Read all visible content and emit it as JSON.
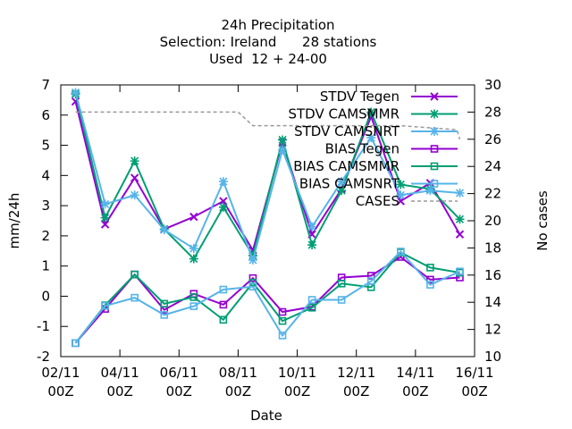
{
  "chart_data": {
    "type": "line",
    "title_lines": [
      "24h Precipitation",
      "Selection: Ireland      28 stations",
      "Used  12 + 24-00"
    ],
    "xlabel": "Date",
    "ylabel": "mm/24h",
    "y2label": "No cases",
    "xlim": [
      0,
      14
    ],
    "ylim": [
      -2,
      7
    ],
    "y2lim": [
      10,
      30
    ],
    "x_ticks": [
      {
        "x": 0,
        "line1": "02/11",
        "line2": "00Z"
      },
      {
        "x": 2,
        "line1": "04/11",
        "line2": "00Z"
      },
      {
        "x": 4,
        "line1": "06/11",
        "line2": "00Z"
      },
      {
        "x": 6,
        "line1": "08/11",
        "line2": "00Z"
      },
      {
        "x": 8,
        "line1": "10/11",
        "line2": "00Z"
      },
      {
        "x": 10,
        "line1": "12/11",
        "line2": "00Z"
      },
      {
        "x": 12,
        "line1": "14/11",
        "line2": "00Z"
      },
      {
        "x": 14,
        "line1": "16/11",
        "line2": "00Z"
      }
    ],
    "y_ticks": [
      "-2",
      "-1",
      "0",
      "1",
      "2",
      "3",
      "4",
      "5",
      "6",
      "7"
    ],
    "y2_ticks": [
      "10",
      "12",
      "14",
      "16",
      "18",
      "20",
      "22",
      "24",
      "26",
      "28",
      "30"
    ],
    "legend_position": "top-right",
    "series": [
      {
        "name": "STDV Tegen",
        "color": "#9400d3",
        "marker": "x",
        "axis": "y",
        "x": [
          0.5,
          1.5,
          2.5,
          3.5,
          4.5,
          5.5,
          6.5,
          7.5,
          8.5,
          9.5,
          10.5,
          11.5,
          12.5,
          13.5
        ],
        "y": [
          6.45,
          2.38,
          3.92,
          2.22,
          2.63,
          3.15,
          1.52,
          5.1,
          2.05,
          3.55,
          5.95,
          3.15,
          3.75,
          2.05
        ]
      },
      {
        "name": "STDV CAMSMMR",
        "color": "#009e73",
        "marker": "*",
        "axis": "y",
        "x": [
          0.5,
          1.5,
          2.5,
          3.5,
          4.5,
          5.5,
          6.5,
          7.5,
          8.5,
          9.5,
          10.5,
          11.5,
          12.5,
          13.5
        ],
        "y": [
          6.7,
          2.6,
          4.48,
          2.22,
          1.24,
          2.95,
          1.35,
          5.18,
          1.7,
          3.5,
          6.1,
          3.7,
          3.55,
          2.55
        ]
      },
      {
        "name": "STDV CAMSNRT",
        "color": "#56b4e9",
        "marker": "*",
        "axis": "y",
        "x": [
          0.5,
          1.5,
          2.5,
          3.5,
          4.5,
          5.5,
          6.5,
          7.5,
          8.5,
          9.5,
          10.5,
          11.5,
          12.5,
          13.5
        ],
        "y": [
          6.75,
          3.05,
          3.35,
          2.2,
          1.58,
          3.8,
          1.2,
          4.85,
          2.3,
          3.8,
          5.25,
          3.35,
          3.5,
          3.42
        ]
      },
      {
        "name": "BIAS Tegen",
        "color": "#9400d3",
        "marker": "square",
        "axis": "y",
        "x": [
          0.5,
          1.5,
          2.5,
          3.5,
          4.5,
          5.5,
          6.5,
          7.5,
          8.5,
          9.5,
          10.5,
          11.5,
          12.5,
          13.5
        ],
        "y": [
          -1.55,
          -0.42,
          0.72,
          -0.45,
          0.08,
          -0.28,
          0.6,
          -0.52,
          -0.35,
          0.62,
          0.68,
          1.3,
          0.55,
          0.62
        ]
      },
      {
        "name": "BIAS CAMSMMR",
        "color": "#009e73",
        "marker": "square",
        "axis": "y",
        "x": [
          0.5,
          1.5,
          2.5,
          3.5,
          4.5,
          5.5,
          6.5,
          7.5,
          8.5,
          9.5,
          10.5,
          11.5,
          12.5,
          13.5
        ],
        "y": [
          -1.55,
          -0.3,
          0.72,
          -0.25,
          -0.03,
          -0.78,
          0.45,
          -0.82,
          -0.38,
          0.42,
          0.3,
          1.45,
          0.95,
          0.78
        ]
      },
      {
        "name": "BIAS CAMSNRT",
        "color": "#56b4e9",
        "marker": "square",
        "axis": "y",
        "x": [
          0.5,
          1.5,
          2.5,
          3.5,
          4.5,
          5.5,
          6.5,
          7.5,
          8.5,
          9.5,
          10.5,
          11.5,
          12.5,
          13.5
        ],
        "y": [
          -1.55,
          -0.32,
          -0.05,
          -0.62,
          -0.33,
          0.22,
          0.32,
          -1.3,
          -0.12,
          -0.12,
          0.5,
          1.48,
          0.38,
          0.82
        ]
      },
      {
        "name": "CASES",
        "color": "#999999",
        "marker": "none",
        "dashed": true,
        "step": true,
        "axis": "y2",
        "x": [
          0.5,
          6.0,
          6.5,
          11.5,
          13.4,
          13.5
        ],
        "y": [
          28,
          28,
          27,
          27,
          26.7,
          26
        ]
      }
    ]
  }
}
